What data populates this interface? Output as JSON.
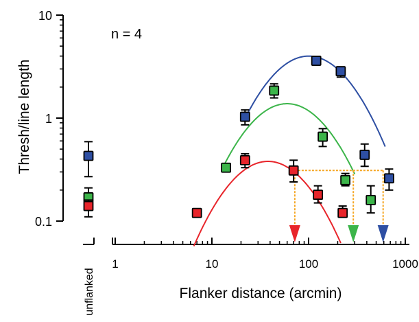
{
  "chart_data": {
    "type": "scatter",
    "annotation": "n = 4",
    "xlabel": "Flanker distance (arcmin)",
    "ylabel": "Thresh/line length",
    "x_scale": "log",
    "y_scale": "log",
    "xlim": [
      1,
      1000
    ],
    "ylim": [
      0.1,
      10
    ],
    "x_ticks": [
      1,
      10,
      100,
      1000
    ],
    "x_tick_labels": [
      "1",
      "10",
      "100",
      "1000"
    ],
    "y_ticks": [
      0.1,
      1,
      10
    ],
    "y_tick_labels": [
      "0.1",
      "1",
      "10"
    ],
    "unflanked_label": "unflanked",
    "grid": false,
    "legend": "none",
    "series": [
      {
        "color": "#2e4fa3",
        "unflanked": {
          "y": 0.43,
          "err": [
            0.27,
            0.59
          ]
        },
        "points": [
          {
            "x": 22,
            "y": 1.03,
            "err": [
              0.86,
              1.2
            ]
          },
          {
            "x": 120,
            "y": 3.6,
            "err": [
              3.3,
              3.85
            ]
          },
          {
            "x": 215,
            "y": 2.85,
            "err": [
              2.5,
              3.15
            ]
          },
          {
            "x": 380,
            "y": 0.44,
            "err": [
              0.34,
              0.56
            ]
          },
          {
            "x": 680,
            "y": 0.26,
            "err": [
              0.2,
              0.32
            ]
          }
        ],
        "fit": {
          "peak_x": 100,
          "peak_y": 4.0,
          "x_range": [
            22,
            620
          ],
          "curvature": 1.4
        }
      },
      {
        "color": "#3cb54a",
        "unflanked": {
          "y": 0.17,
          "err": [
            0.13,
            0.21
          ]
        },
        "points": [
          {
            "x": 14,
            "y": 0.33,
            "err": [
              0.31,
              0.35
            ]
          },
          {
            "x": 44,
            "y": 1.85,
            "err": [
              1.57,
              2.15
            ]
          },
          {
            "x": 140,
            "y": 0.66,
            "err": [
              0.53,
              0.79
            ]
          },
          {
            "x": 240,
            "y": 0.25,
            "err": [
              0.22,
              0.29
            ]
          },
          {
            "x": 440,
            "y": 0.16,
            "err": [
              0.12,
              0.22
            ]
          }
        ],
        "fit": {
          "peak_x": 60,
          "peak_y": 1.38,
          "x_range": [
            13,
            300
          ],
          "curvature": 1.4
        }
      },
      {
        "color": "#e8252b",
        "unflanked": {
          "y": 0.14,
          "err": [
            0.11,
            0.16
          ]
        },
        "points": [
          {
            "x": 7,
            "y": 0.12,
            "err": [
              0.11,
              0.13
            ]
          },
          {
            "x": 22,
            "y": 0.39,
            "err": [
              0.33,
              0.45
            ]
          },
          {
            "x": 70,
            "y": 0.31,
            "err": [
              0.24,
              0.39
            ]
          },
          {
            "x": 125,
            "y": 0.18,
            "err": [
              0.15,
              0.22
            ]
          },
          {
            "x": 225,
            "y": 0.12,
            "err": [
              0.11,
              0.14
            ]
          }
        ],
        "fit": {
          "peak_x": 38,
          "peak_y": 0.38,
          "x_range": [
            6.5,
            215
          ],
          "curvature": 1.4
        }
      }
    ],
    "threshold_line": {
      "y": 0.31,
      "color": "#f5a623"
    },
    "arrows": [
      {
        "x": 72,
        "color": "#e8252b"
      },
      {
        "x": 290,
        "color": "#3cb54a"
      },
      {
        "x": 590,
        "color": "#2e4fa3"
      }
    ]
  }
}
